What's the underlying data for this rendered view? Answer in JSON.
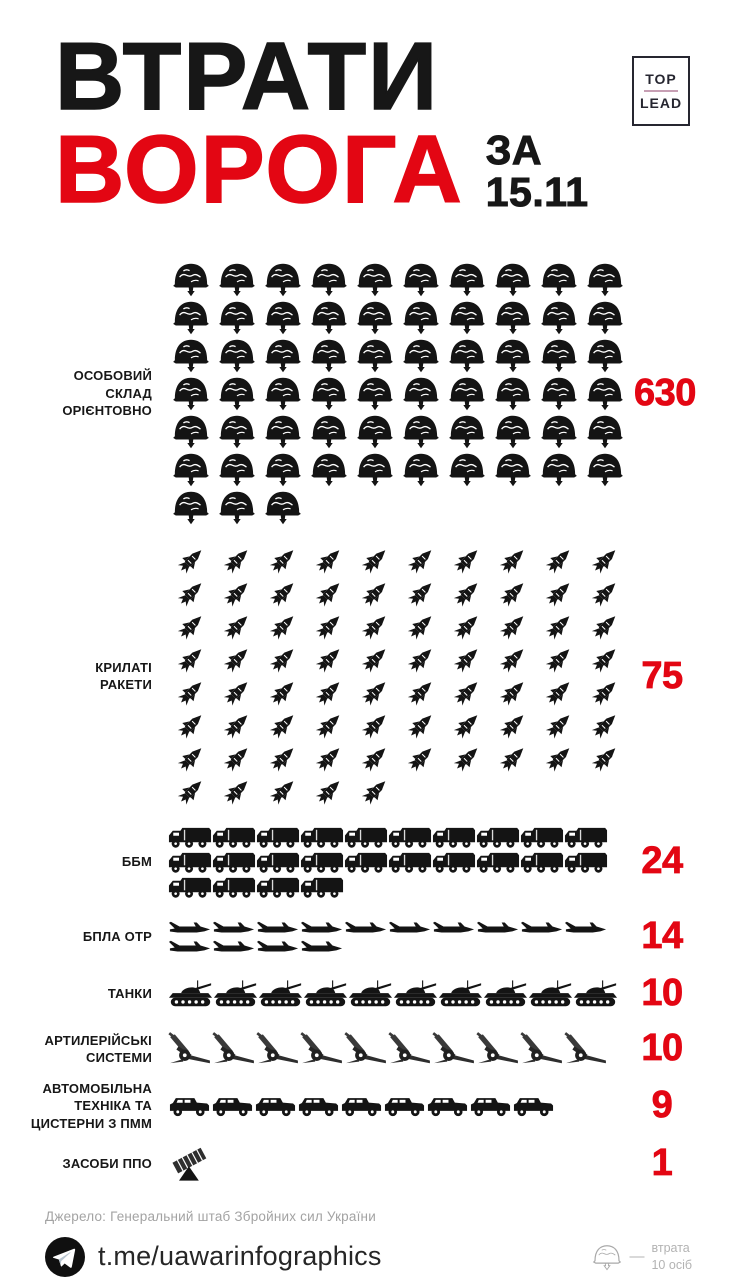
{
  "title": {
    "line1": "ВТРАТИ",
    "line2": "ВОРОГА",
    "date_line1": "ЗА",
    "date_line2": "15.11"
  },
  "logo": {
    "line1": "TOP",
    "line2": "LEAD"
  },
  "colors": {
    "accent_red": "#e30613",
    "ink": "#171717",
    "logo_divider": "#c79fb4",
    "muted_gray": "#a3a3a3"
  },
  "chart_data": {
    "type": "pictogram",
    "title": "ВТРАТИ ВОРОГА ЗА 15.11",
    "legend": "1 шолом-піктограма = втрата 10 осіб",
    "rows": [
      {
        "label": "ОСОБОВИЙ\nСКЛАД\nОРІЄНТОВНО",
        "value": 630,
        "icon": "helmet",
        "icons": 63,
        "icon_value": 10
      },
      {
        "label": "КРИЛАТІ\nРАКЕТИ",
        "value": 75,
        "icon": "missile",
        "icons": 75,
        "icon_value": 1
      },
      {
        "label": "ББМ",
        "value": 24,
        "icon": "apc",
        "icons": 24,
        "icon_value": 1
      },
      {
        "label": "БПЛА ОТР",
        "value": 14,
        "icon": "drone",
        "icons": 14,
        "icon_value": 1
      },
      {
        "label": "ТАНКИ",
        "value": 10,
        "icon": "tank",
        "icons": 10,
        "icon_value": 1
      },
      {
        "label": "АРТИЛЕРІЙСЬКІ\nСИСТЕМИ",
        "value": 10,
        "icon": "artillery",
        "icons": 10,
        "icon_value": 1
      },
      {
        "label": "АВТОМОБІЛЬНА\nТЕХНІКА ТА\nЦИСТЕРНИ З ПММ",
        "value": 9,
        "icon": "truck",
        "icons": 9,
        "icon_value": 1
      },
      {
        "label": "ЗАСОБИ ППО",
        "value": 1,
        "icon": "aa",
        "icons": 1,
        "icon_value": 1
      }
    ]
  },
  "source": "Джерело: Генеральний штаб Збройних сил України",
  "footer": {
    "channel": "t.me/uawarinfographics",
    "legend_line1": "втрата",
    "legend_line2": "10 осіб"
  }
}
